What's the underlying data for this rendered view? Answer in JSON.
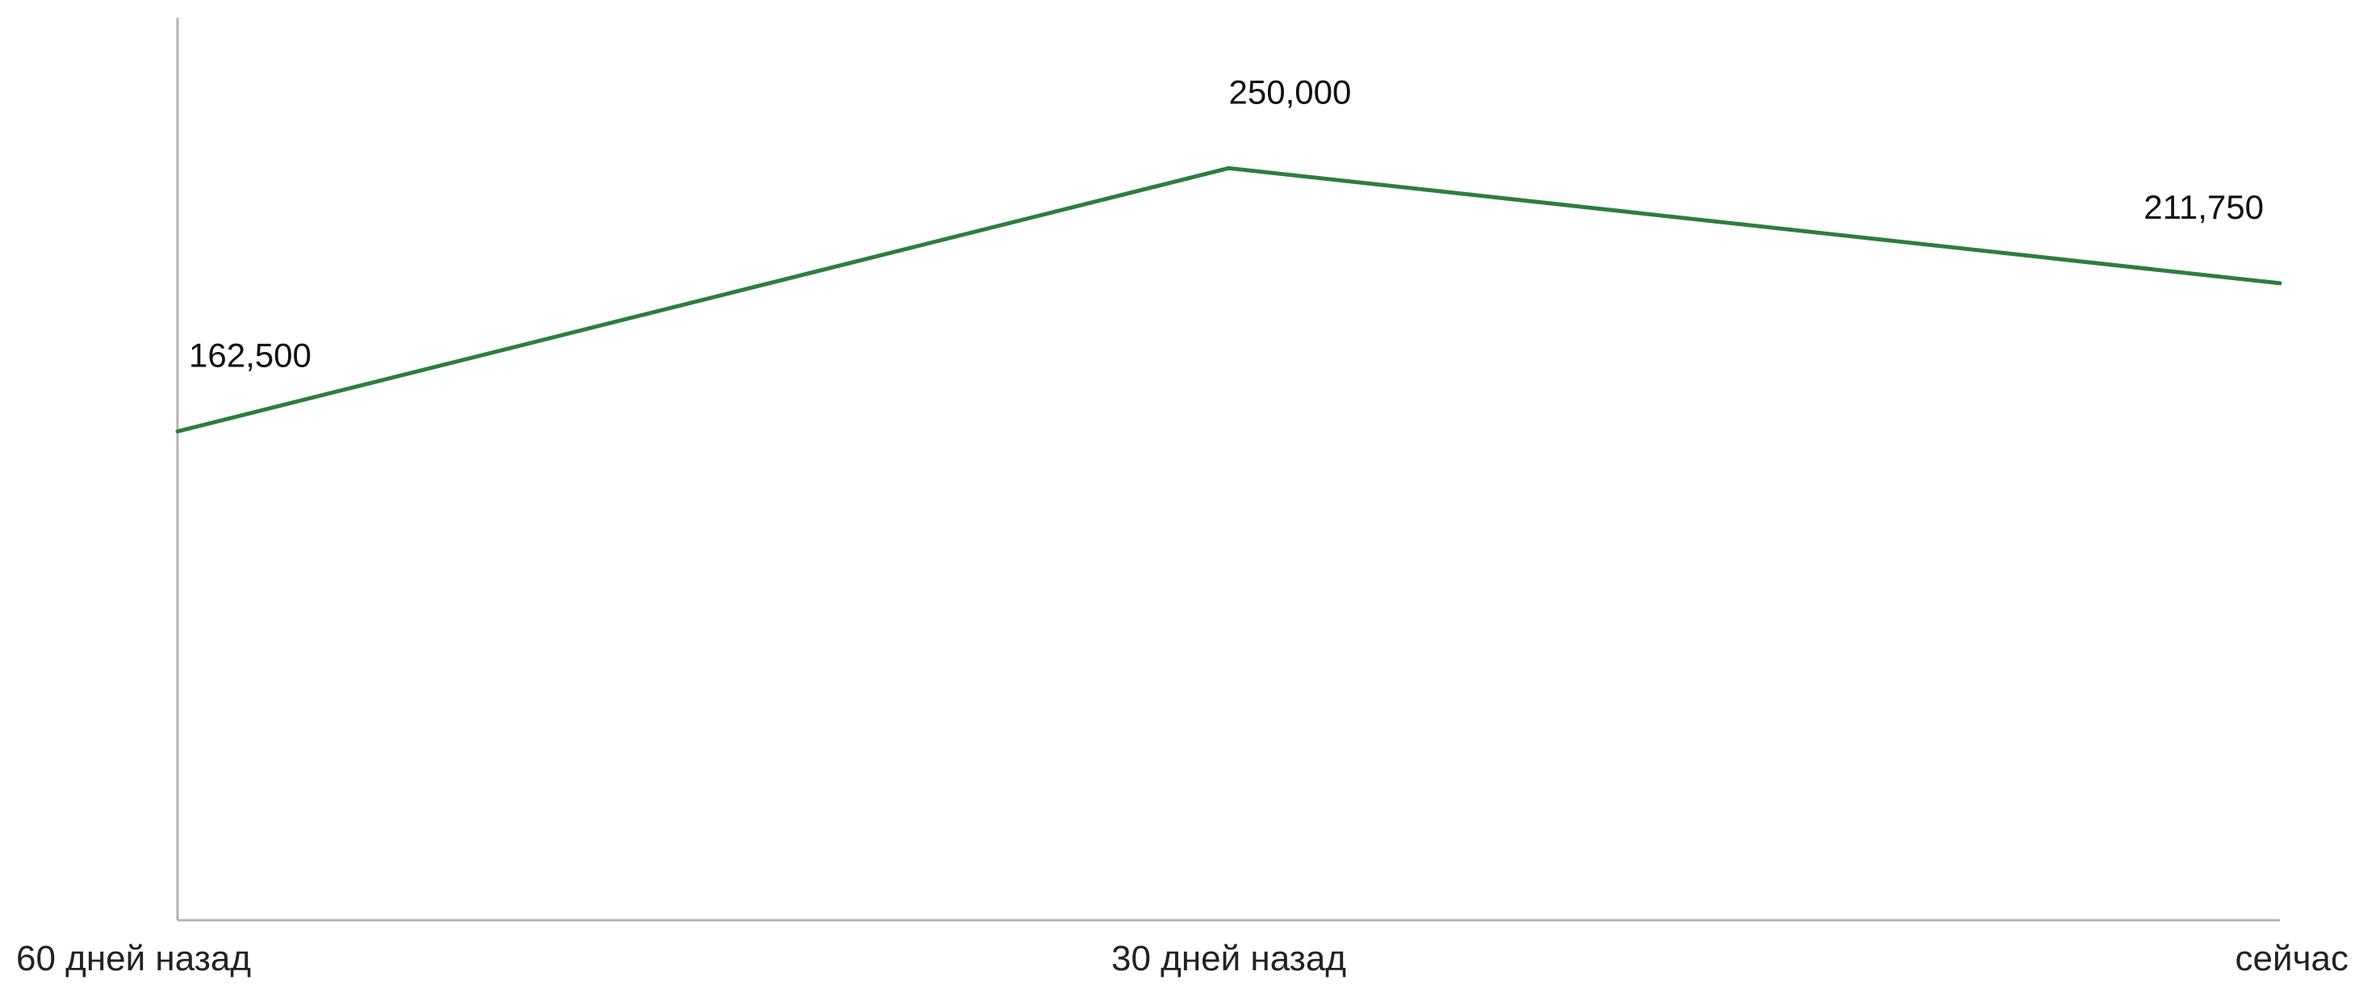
{
  "chart_data": {
    "type": "line",
    "categories": [
      "60 дней назад",
      "30 дней назад",
      "сейчас"
    ],
    "series": [
      {
        "values": [
          162500,
          250000,
          211750
        ],
        "labels": [
          "162,500",
          "250,000",
          "211,750"
        ],
        "color": "#2e7d3e"
      }
    ],
    "title": "",
    "xlabel": "",
    "ylabel": "",
    "ylim": [
      0,
      300000
    ],
    "grid": false,
    "legend": "none"
  },
  "colors": {
    "axis": "#b3b3b3",
    "line": "#2e7d3e",
    "text": "#111111"
  }
}
